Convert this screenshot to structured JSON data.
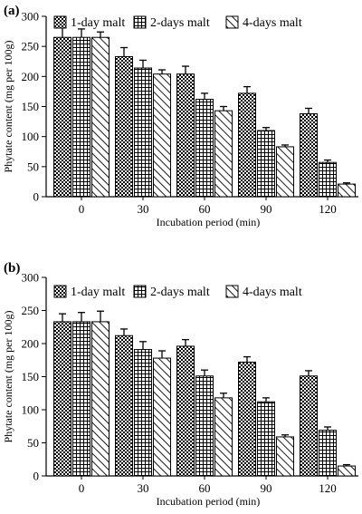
{
  "chart_data": [
    {
      "type": "bar",
      "panel_label": "(a)",
      "categories": [
        "0",
        "30",
        "60",
        "90",
        "120"
      ],
      "series": [
        {
          "name": "1-day malt",
          "values": [
            265,
            233,
            204,
            172,
            138
          ],
          "errors": [
            16,
            15,
            13,
            11,
            9
          ]
        },
        {
          "name": "2-days malt",
          "values": [
            265,
            214,
            162,
            110,
            57
          ],
          "errors": [
            14,
            13,
            10,
            5,
            4
          ]
        },
        {
          "name": "4-days malt",
          "values": [
            265,
            204,
            143,
            83,
            21
          ],
          "errors": [
            9,
            7,
            7,
            3,
            2
          ]
        }
      ],
      "xlabel": "Incubation period (min)",
      "ylabel": "Phytate content (mg per 100g)",
      "ylim": [
        0,
        300
      ],
      "yticks": [
        "0",
        "50",
        "100",
        "150",
        "200",
        "250",
        "300"
      ],
      "legend": "top-right"
    },
    {
      "type": "bar",
      "panel_label": "(b)",
      "categories": [
        "0",
        "30",
        "60",
        "90",
        "120"
      ],
      "series": [
        {
          "name": "1-day malt",
          "values": [
            233,
            212,
            196,
            172,
            151
          ],
          "errors": [
            12,
            10,
            10,
            8,
            8
          ]
        },
        {
          "name": "2-days malt",
          "values": [
            233,
            191,
            151,
            112,
            69
          ],
          "errors": [
            14,
            12,
            9,
            6,
            5
          ]
        },
        {
          "name": "4-days malt",
          "values": [
            233,
            178,
            118,
            59,
            15
          ],
          "errors": [
            16,
            11,
            7,
            3,
            2
          ]
        }
      ],
      "xlabel": "Incubation period (min)",
      "ylabel": "Phytate content (mg per 100g)",
      "ylim": [
        0,
        300
      ],
      "yticks": [
        "0",
        "50",
        "100",
        "150",
        "200",
        "250",
        "300"
      ],
      "legend": "top-right"
    }
  ]
}
